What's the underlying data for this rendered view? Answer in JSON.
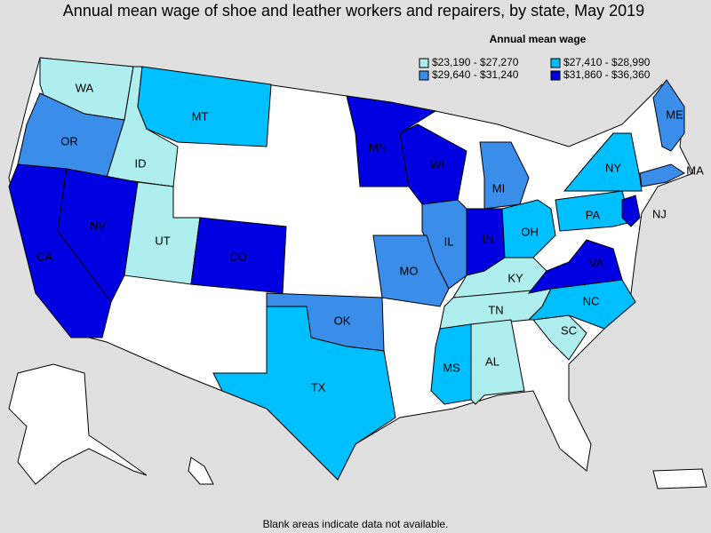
{
  "title": "Annual mean wage of shoe and leather workers and repairers, by state, May 2019",
  "legend": {
    "title": "Annual mean wage",
    "items": [
      {
        "label": "$23,190 - $27,270",
        "color": "#aeeeee"
      },
      {
        "label": "$27,410 - $28,990",
        "color": "#00bfff"
      },
      {
        "label": "$29,640 - $31,240",
        "color": "#3a8eea"
      },
      {
        "label": "$31,860 - $36,360",
        "color": "#0000e0"
      }
    ]
  },
  "states": [
    {
      "label": "WA",
      "color": "#aeeeee"
    },
    {
      "label": "OR",
      "color": "#3a8eea"
    },
    {
      "label": "ID",
      "color": "#aeeeee"
    },
    {
      "label": "MT",
      "color": "#00bfff"
    },
    {
      "label": "CA",
      "color": "#0000e0"
    },
    {
      "label": "NV",
      "color": "#0000e0"
    },
    {
      "label": "UT",
      "color": "#aeeeee"
    },
    {
      "label": "CO",
      "color": "#0000e0"
    },
    {
      "label": "MN",
      "color": "#0000e0"
    },
    {
      "label": "WI",
      "color": "#0000e0"
    },
    {
      "label": "MI",
      "color": "#3a8eea"
    },
    {
      "label": "IL",
      "color": "#3a8eea"
    },
    {
      "label": "IN",
      "color": "#0000e0"
    },
    {
      "label": "OH",
      "color": "#00bfff"
    },
    {
      "label": "MO",
      "color": "#3a8eea"
    },
    {
      "label": "OK",
      "color": "#3a8eea"
    },
    {
      "label": "TX",
      "color": "#00bfff"
    },
    {
      "label": "KY",
      "color": "#aeeeee"
    },
    {
      "label": "TN",
      "color": "#aeeeee"
    },
    {
      "label": "MS",
      "color": "#00bfff"
    },
    {
      "label": "AL",
      "color": "#aeeeee"
    },
    {
      "label": "SC",
      "color": "#aeeeee"
    },
    {
      "label": "NC",
      "color": "#00bfff"
    },
    {
      "label": "VA",
      "color": "#0000e0"
    },
    {
      "label": "PA",
      "color": "#00bfff"
    },
    {
      "label": "NY",
      "color": "#00bfff"
    },
    {
      "label": "ME",
      "color": "#3a8eea"
    },
    {
      "label": "MA",
      "color": "#3a8eea"
    },
    {
      "label": "NJ",
      "color": "#0000e0"
    }
  ],
  "footnote": "Blank areas indicate data not available."
}
